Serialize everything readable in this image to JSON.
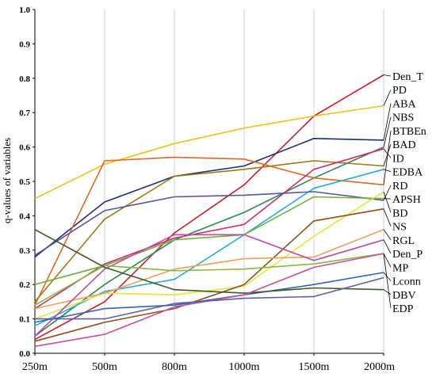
{
  "chart_data": {
    "type": "line",
    "title": "",
    "xlabel": "",
    "ylabel": "q-values of variables",
    "categories": [
      "250m",
      "500m",
      "800m",
      "1000m",
      "1500m",
      "2000m"
    ],
    "ylim": [
      0,
      1
    ],
    "yticks": [
      "0.0",
      "0.1",
      "0.2",
      "0.3",
      "0.4",
      "0.5",
      "0.6",
      "0.7",
      "0.8",
      "0.9",
      "1.0"
    ],
    "grid": "vertical",
    "series": [
      {
        "name": "Den_T",
        "color": "#cc1f2b",
        "values": [
          0.04,
          0.15,
          0.35,
          0.49,
          0.69,
          0.81
        ]
      },
      {
        "name": "PD",
        "color": "#ecc21a",
        "values": [
          0.45,
          0.55,
          0.61,
          0.655,
          0.69,
          0.72
        ]
      },
      {
        "name": "ABA",
        "color": "#1b2e6e",
        "values": [
          0.28,
          0.44,
          0.515,
          0.545,
          0.625,
          0.62
        ]
      },
      {
        "name": "NBS",
        "color": "#2c8a4a",
        "values": [
          0.05,
          0.2,
          0.33,
          0.41,
          0.51,
          0.6
        ]
      },
      {
        "name": "BTBEn",
        "color": "#e16a1e",
        "values": [
          0.14,
          0.56,
          0.57,
          0.565,
          0.51,
          0.49
        ]
      },
      {
        "name": "BAD",
        "color": "#9a7a12",
        "values": [
          0.15,
          0.39,
          0.515,
          0.535,
          0.56,
          0.545
        ]
      },
      {
        "name": "ID",
        "color": "#d02d72",
        "values": [
          0.13,
          0.26,
          0.335,
          0.375,
          0.535,
          0.595
        ]
      },
      {
        "name": "EDBA",
        "color": "#2aa9e6",
        "values": [
          0.08,
          0.18,
          0.215,
          0.345,
          0.48,
          0.535
        ]
      },
      {
        "name": "RD",
        "color": "#55569f",
        "values": [
          0.285,
          0.415,
          0.455,
          0.46,
          0.47,
          0.445
        ]
      },
      {
        "name": "APSH",
        "color": "#6cb33a",
        "values": [
          0.2,
          0.255,
          0.33,
          0.345,
          0.455,
          0.45
        ]
      },
      {
        "name": "BD",
        "color": "#e5e53a",
        "values": [
          0.1,
          0.175,
          0.17,
          0.195,
          0.34,
          0.47
        ]
      },
      {
        "name": "NS",
        "color": "#8e4f1c",
        "values": [
          0.035,
          0.09,
          0.13,
          0.2,
          0.385,
          0.42
        ]
      },
      {
        "name": "RGL",
        "color": "#e8a35a",
        "values": [
          0.13,
          0.175,
          0.245,
          0.275,
          0.28,
          0.36
        ]
      },
      {
        "name": "Den_P",
        "color": "#b94ca9",
        "values": [
          0.05,
          0.245,
          0.345,
          0.345,
          0.27,
          0.33
        ]
      },
      {
        "name": "MP",
        "color": "#86b941",
        "values": [
          0.14,
          0.255,
          0.24,
          0.245,
          0.26,
          0.29
        ]
      },
      {
        "name": "Lconn",
        "color": "#2e66ad",
        "values": [
          0.09,
          0.13,
          0.14,
          0.17,
          0.2,
          0.235
        ]
      },
      {
        "name": "DBV",
        "color": "#3b5a2a",
        "values": [
          0.36,
          0.25,
          0.185,
          0.175,
          0.19,
          0.185
        ]
      },
      {
        "name": "EDP",
        "color": "#cc4f9a",
        "values": [
          0.02,
          0.055,
          0.135,
          0.17,
          0.25,
          0.29
        ]
      },
      {
        "name": "",
        "color": "#5b5fa8",
        "values": [
          0.1,
          0.1,
          0.145,
          0.16,
          0.165,
          0.22
        ]
      }
    ]
  }
}
